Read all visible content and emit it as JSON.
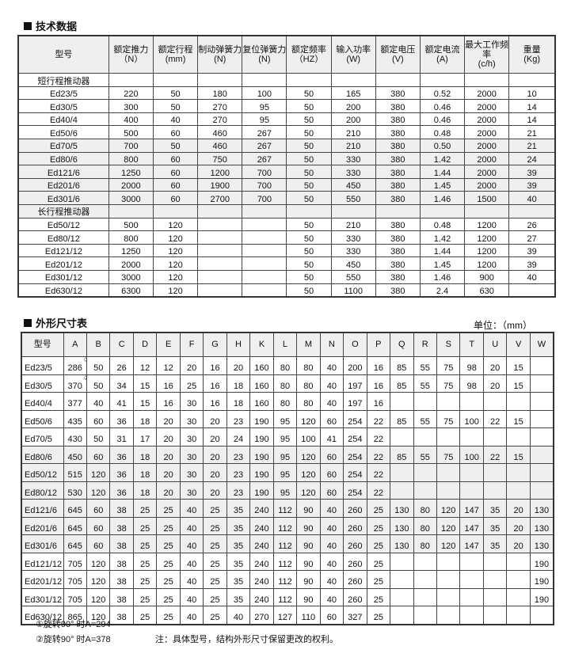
{
  "tech": {
    "title": "技术数据",
    "headers": [
      [
        "型号",
        ""
      ],
      [
        "额定推力",
        "（N）"
      ],
      [
        "额定行程",
        "(mm)"
      ],
      [
        "制动弹簧力",
        "(N)"
      ],
      [
        "复位弹簧力",
        "(N)"
      ],
      [
        "额定频率",
        "（HZ）"
      ],
      [
        "输入功率",
        "(W)"
      ],
      [
        "额定电压",
        "(V)"
      ],
      [
        "额定电流",
        "(A)"
      ],
      [
        "最大工作频率",
        "(c/h)"
      ],
      [
        "重量",
        "(Kg)"
      ]
    ],
    "groups": [
      {
        "label": "短行程推动器",
        "rows": [
          [
            "Ed23/5",
            "220",
            "50",
            "180",
            "100",
            "50",
            "165",
            "380",
            "0.52",
            "2000",
            "10"
          ],
          [
            "Ed30/5",
            "300",
            "50",
            "270",
            "95",
            "50",
            "200",
            "380",
            "0.46",
            "2000",
            "14"
          ],
          [
            "Ed40/4",
            "400",
            "40",
            "270",
            "95",
            "50",
            "200",
            "380",
            "0.46",
            "2000",
            "14"
          ],
          [
            "Ed50/6",
            "500",
            "60",
            "460",
            "267",
            "50",
            "210",
            "380",
            "0.48",
            "2000",
            "21"
          ],
          [
            "Ed70/5",
            "700",
            "50",
            "460",
            "267",
            "50",
            "210",
            "380",
            "0.50",
            "2000",
            "21"
          ],
          [
            "Ed80/6",
            "800",
            "60",
            "750",
            "267",
            "50",
            "330",
            "380",
            "1.42",
            "2000",
            "24"
          ],
          [
            "Ed121/6",
            "1250",
            "60",
            "1200",
            "700",
            "50",
            "330",
            "380",
            "1.44",
            "2000",
            "39"
          ],
          [
            "Ed201/6",
            "2000",
            "60",
            "1900",
            "700",
            "50",
            "450",
            "380",
            "1.45",
            "2000",
            "39"
          ],
          [
            "Ed301/6",
            "3000",
            "60",
            "2700",
            "700",
            "50",
            "550",
            "380",
            "1.46",
            "1500",
            "40"
          ]
        ]
      },
      {
        "label": "长行程推动器",
        "rows": [
          [
            "Ed50/12",
            "500",
            "120",
            "",
            "",
            "50",
            "210",
            "380",
            "0.48",
            "1200",
            "26"
          ],
          [
            "Ed80/12",
            "800",
            "120",
            "",
            "",
            "50",
            "330",
            "380",
            "1.42",
            "1200",
            "27"
          ],
          [
            "Ed121/12",
            "1250",
            "120",
            "",
            "",
            "50",
            "330",
            "380",
            "1.44",
            "1200",
            "39"
          ],
          [
            "Ed201/12",
            "2000",
            "120",
            "",
            "",
            "50",
            "450",
            "380",
            "1.45",
            "1200",
            "39"
          ],
          [
            "Ed301/12",
            "3000",
            "120",
            "",
            "",
            "50",
            "550",
            "380",
            "1.46",
            "900",
            "40"
          ],
          [
            "Ed630/12",
            "6300",
            "120",
            "",
            "",
            "50",
            "1100",
            "380",
            "2.4",
            "630",
            ""
          ]
        ]
      }
    ]
  },
  "dims": {
    "title": "外形尺寸表",
    "unit": "单位：（mm）",
    "headers": [
      "型号",
      "A",
      "B",
      "C",
      "D",
      "E",
      "F",
      "G",
      "H",
      "K",
      "L",
      "M",
      "N",
      "O",
      "P",
      "Q",
      "R",
      "S",
      "T",
      "U",
      "V",
      "W"
    ],
    "rows": [
      [
        "Ed23/5",
        "286",
        "50",
        "26",
        "12",
        "12",
        "20",
        "16",
        "20",
        "160",
        "80",
        "80",
        "40",
        "200",
        "16",
        "85",
        "55",
        "75",
        "98",
        "20",
        "15",
        ""
      ],
      [
        "Ed30/5",
        "370",
        "50",
        "34",
        "15",
        "16",
        "25",
        "16",
        "18",
        "160",
        "80",
        "80",
        "40",
        "197",
        "16",
        "85",
        "55",
        "75",
        "98",
        "20",
        "15",
        ""
      ],
      [
        "Ed40/4",
        "377",
        "40",
        "41",
        "15",
        "16",
        "30",
        "16",
        "18",
        "160",
        "80",
        "80",
        "40",
        "197",
        "16",
        "",
        "",
        "",
        "",
        "",
        "",
        ""
      ],
      [
        "Ed50/6",
        "435",
        "60",
        "36",
        "18",
        "20",
        "30",
        "20",
        "23",
        "190",
        "95",
        "120",
        "60",
        "254",
        "22",
        "85",
        "55",
        "75",
        "100",
        "22",
        "15",
        ""
      ],
      [
        "Ed70/5",
        "430",
        "50",
        "31",
        "17",
        "20",
        "30",
        "20",
        "24",
        "190",
        "95",
        "100",
        "41",
        "254",
        "22",
        "",
        "",
        "",
        "",
        "",
        "",
        ""
      ],
      [
        "Ed80/6",
        "450",
        "60",
        "36",
        "18",
        "20",
        "30",
        "20",
        "23",
        "190",
        "95",
        "120",
        "60",
        "254",
        "22",
        "85",
        "55",
        "75",
        "100",
        "22",
        "15",
        ""
      ],
      [
        "Ed50/12",
        "515",
        "120",
        "36",
        "18",
        "20",
        "30",
        "20",
        "23",
        "190",
        "95",
        "120",
        "60",
        "254",
        "22",
        "",
        "",
        "",
        "",
        "",
        "",
        ""
      ],
      [
        "Ed80/12",
        "530",
        "120",
        "36",
        "18",
        "20",
        "30",
        "20",
        "23",
        "190",
        "95",
        "120",
        "60",
        "254",
        "22",
        "",
        "",
        "",
        "",
        "",
        "",
        ""
      ],
      [
        "Ed121/6",
        "645",
        "60",
        "38",
        "25",
        "25",
        "40",
        "25",
        "35",
        "240",
        "112",
        "90",
        "40",
        "260",
        "25",
        "130",
        "80",
        "120",
        "147",
        "35",
        "20",
        "130"
      ],
      [
        "Ed201/6",
        "645",
        "60",
        "38",
        "25",
        "25",
        "40",
        "25",
        "35",
        "240",
        "112",
        "90",
        "40",
        "260",
        "25",
        "130",
        "80",
        "120",
        "147",
        "35",
        "20",
        "130"
      ],
      [
        "Ed301/6",
        "645",
        "60",
        "38",
        "25",
        "25",
        "40",
        "25",
        "35",
        "240",
        "112",
        "90",
        "40",
        "260",
        "25",
        "130",
        "80",
        "120",
        "147",
        "35",
        "20",
        "130"
      ],
      [
        "Ed121/12",
        "705",
        "120",
        "38",
        "25",
        "25",
        "40",
        "25",
        "35",
        "240",
        "112",
        "90",
        "40",
        "260",
        "25",
        "",
        "",
        "",
        "",
        "",
        "",
        "190"
      ],
      [
        "Ed201/12",
        "705",
        "120",
        "38",
        "25",
        "25",
        "40",
        "25",
        "35",
        "240",
        "112",
        "90",
        "40",
        "260",
        "25",
        "",
        "",
        "",
        "",
        "",
        "",
        "190"
      ],
      [
        "Ed301/12",
        "705",
        "120",
        "38",
        "25",
        "25",
        "40",
        "25",
        "35",
        "240",
        "112",
        "90",
        "40",
        "260",
        "25",
        "",
        "",
        "",
        "",
        "",
        "",
        "190"
      ],
      [
        "Ed630/12",
        "865",
        "120",
        "38",
        "25",
        "25",
        "40",
        "25",
        "40",
        "270",
        "127",
        "110",
        "60",
        "327",
        "25",
        "",
        "",
        "",
        "",
        "",
        "",
        ""
      ]
    ],
    "markers": [
      "①",
      "②"
    ],
    "notes": [
      "①旋转90° 时A=294",
      "②旋转90° 时A=378"
    ],
    "remark": "注：具体型号，结构外形尺寸保留更改的权利。"
  }
}
